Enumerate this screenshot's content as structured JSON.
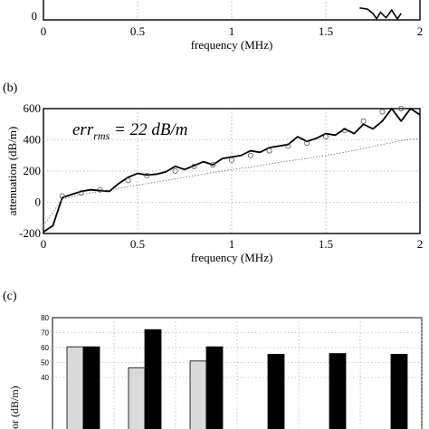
{
  "chart_data": [
    {
      "panel": "",
      "type": "line",
      "xlim": [
        0,
        2
      ],
      "xticks": [
        "0",
        "0.5",
        "1",
        "1.5",
        "2"
      ],
      "xlabel": "frequency (MHz)",
      "ytick_partial": "0",
      "grid": true,
      "series": [
        {
          "style": "solid",
          "x": [
            1.68,
            1.72,
            1.75,
            1.77,
            1.79,
            1.82,
            1.85,
            1.88,
            1.9
          ],
          "y": [
            0.55,
            0.5,
            0.3,
            0.05,
            0.35,
            0.1,
            0.45,
            0.05,
            0.3
          ]
        }
      ]
    },
    {
      "panel": "(b)",
      "type": "line",
      "xlim": [
        0,
        2
      ],
      "ylim": [
        -200,
        600
      ],
      "xticks": [
        "0",
        "0.5",
        "1",
        "1.5",
        "2"
      ],
      "yticks": [
        "-200",
        "0",
        "200",
        "400",
        "600"
      ],
      "xlabel": "frequency (MHz)",
      "ylabel": "attenuation (dB/m)",
      "annotation": {
        "main": "err",
        "sub": "rms",
        "rest": " = 22 dB/m"
      },
      "grid": true,
      "series": [
        {
          "style": "solid",
          "x": [
            0,
            0.05,
            0.1,
            0.15,
            0.2,
            0.25,
            0.3,
            0.35,
            0.4,
            0.45,
            0.5,
            0.55,
            0.6,
            0.65,
            0.7,
            0.75,
            0.8,
            0.85,
            0.9,
            0.95,
            1.0,
            1.05,
            1.1,
            1.15,
            1.2,
            1.25,
            1.3,
            1.35,
            1.4,
            1.45,
            1.5,
            1.55,
            1.6,
            1.65,
            1.7,
            1.75,
            1.8,
            1.85,
            1.9,
            1.95,
            2.0
          ],
          "y": [
            -190,
            -150,
            30,
            50,
            70,
            80,
            75,
            70,
            120,
            160,
            185,
            175,
            180,
            195,
            230,
            210,
            235,
            260,
            240,
            280,
            290,
            300,
            330,
            320,
            350,
            360,
            370,
            420,
            390,
            410,
            440,
            430,
            470,
            440,
            500,
            470,
            520,
            600,
            520,
            600,
            560
          ]
        },
        {
          "style": "dotted",
          "x": [
            0,
            0.1,
            0.2,
            0.3,
            0.4,
            0.5,
            0.6,
            0.7,
            0.8,
            0.9,
            1.0,
            1.1,
            1.2,
            1.3,
            1.4,
            1.5,
            1.6,
            1.7,
            1.8,
            1.9,
            2.0
          ],
          "y": [
            -150,
            20,
            50,
            70,
            90,
            110,
            130,
            150,
            170,
            190,
            210,
            225,
            245,
            265,
            280,
            300,
            320,
            345,
            370,
            395,
            410
          ]
        },
        {
          "style": "circles",
          "x": [
            0.1,
            0.2,
            0.3,
            0.45,
            0.55,
            0.7,
            0.8,
            0.9,
            1.0,
            1.1,
            1.2,
            1.3,
            1.4,
            1.5,
            1.6,
            1.7,
            1.8,
            1.9
          ],
          "y": [
            40,
            60,
            80,
            140,
            170,
            200,
            230,
            240,
            270,
            300,
            330,
            360,
            380,
            420,
            460,
            520,
            580,
            600
          ]
        }
      ]
    },
    {
      "panel": "(c)",
      "type": "bar",
      "ylim": [
        0,
        80
      ],
      "yticks": [
        "80",
        "70",
        "60",
        "50",
        "40"
      ],
      "ylabel_partial": "or (dB/m)",
      "grid": true,
      "series": [
        {
          "color": "#d9d9d9",
          "values": [
            60.5,
            46.5,
            51,
            null,
            null,
            null
          ]
        },
        {
          "color": "#000000",
          "values": [
            60.5,
            72,
            60.5,
            55.5,
            56,
            55.5
          ]
        }
      ]
    }
  ]
}
